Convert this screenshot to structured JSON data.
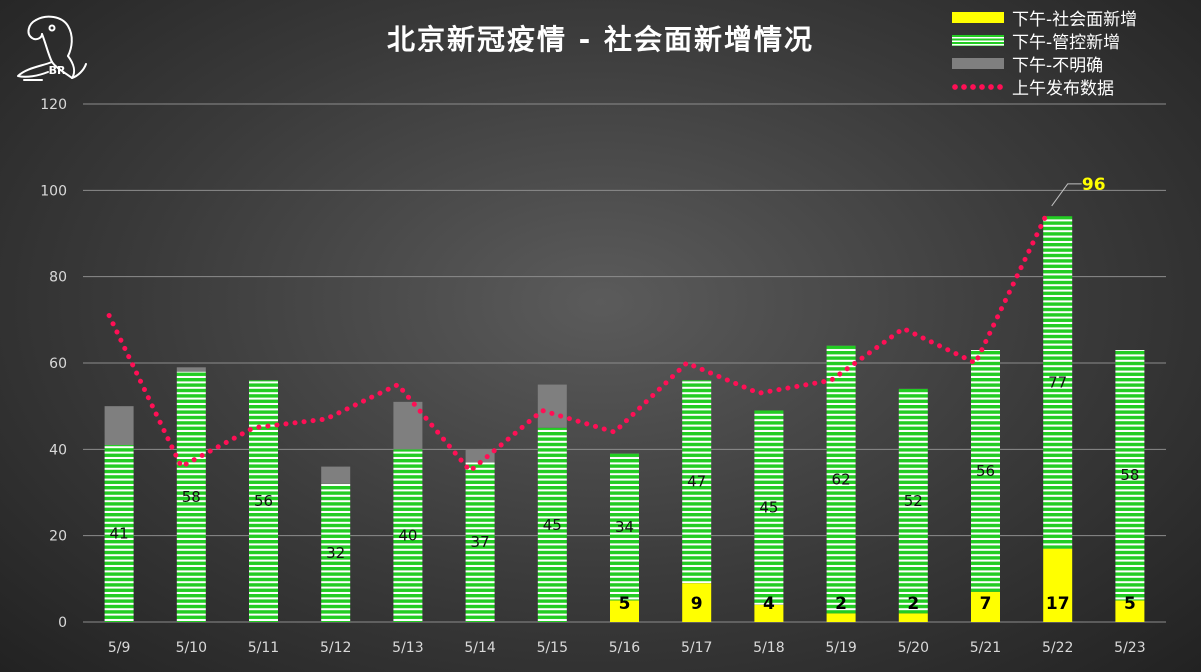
{
  "colors": {
    "social": "#ffff00",
    "control": "#22cc22",
    "unknown": "#7f7f7f",
    "morning": "#ff0f55",
    "axis_text": "#d9d9d9",
    "grid": "#8c8c8c"
  },
  "logo": {
    "text": "BR"
  },
  "legend": [
    {
      "key": "social",
      "label": "下午-社会面新增"
    },
    {
      "key": "control",
      "label": "下午-管控新增"
    },
    {
      "key": "unknown",
      "label": "下午-不明确"
    },
    {
      "key": "morning",
      "label": "上午发布数据"
    }
  ],
  "chart_data": {
    "type": "bar",
    "stacked": true,
    "title": "北京新冠疫情 - 社会面新增情况",
    "categories": [
      "5/9",
      "5/10",
      "5/11",
      "5/12",
      "5/13",
      "5/14",
      "5/15",
      "5/16",
      "5/17",
      "5/18",
      "5/19",
      "5/20",
      "5/21",
      "5/22",
      "5/23"
    ],
    "ylim": [
      0,
      120
    ],
    "yticks": [
      0,
      20,
      40,
      60,
      80,
      100,
      120
    ],
    "grid": true,
    "legend_position": "top-right",
    "series": [
      {
        "name": "下午-社会面新增",
        "kind": "bar",
        "values": [
          0,
          0,
          0,
          0,
          0,
          0,
          0,
          5,
          9,
          4,
          2,
          2,
          7,
          17,
          5
        ],
        "labels": [
          null,
          null,
          null,
          null,
          null,
          null,
          null,
          "5",
          "9",
          "4",
          "2",
          "2",
          "7",
          "17",
          "5"
        ]
      },
      {
        "name": "下午-管控新增",
        "kind": "bar",
        "values": [
          41,
          58,
          56,
          32,
          40,
          37,
          45,
          34,
          47,
          45,
          62,
          52,
          56,
          77,
          58
        ],
        "labels": [
          "41",
          "58",
          "56",
          "32",
          "40",
          "37",
          "45",
          "34",
          "47",
          "45",
          "62",
          "52",
          "56",
          "77",
          "58"
        ]
      },
      {
        "name": "下午-不明确",
        "kind": "bar",
        "values": [
          9,
          1,
          0,
          4,
          11,
          3,
          10,
          0,
          0,
          0,
          0,
          0,
          0,
          0,
          0
        ]
      },
      {
        "name": "上午发布数据",
        "kind": "line",
        "style": "dotted",
        "values": [
          71,
          36,
          45,
          47,
          55,
          35,
          49,
          44,
          60,
          53,
          56,
          68,
          60,
          95,
          null
        ]
      }
    ],
    "annotations": [
      {
        "category": "5/22",
        "text": "96"
      }
    ]
  }
}
